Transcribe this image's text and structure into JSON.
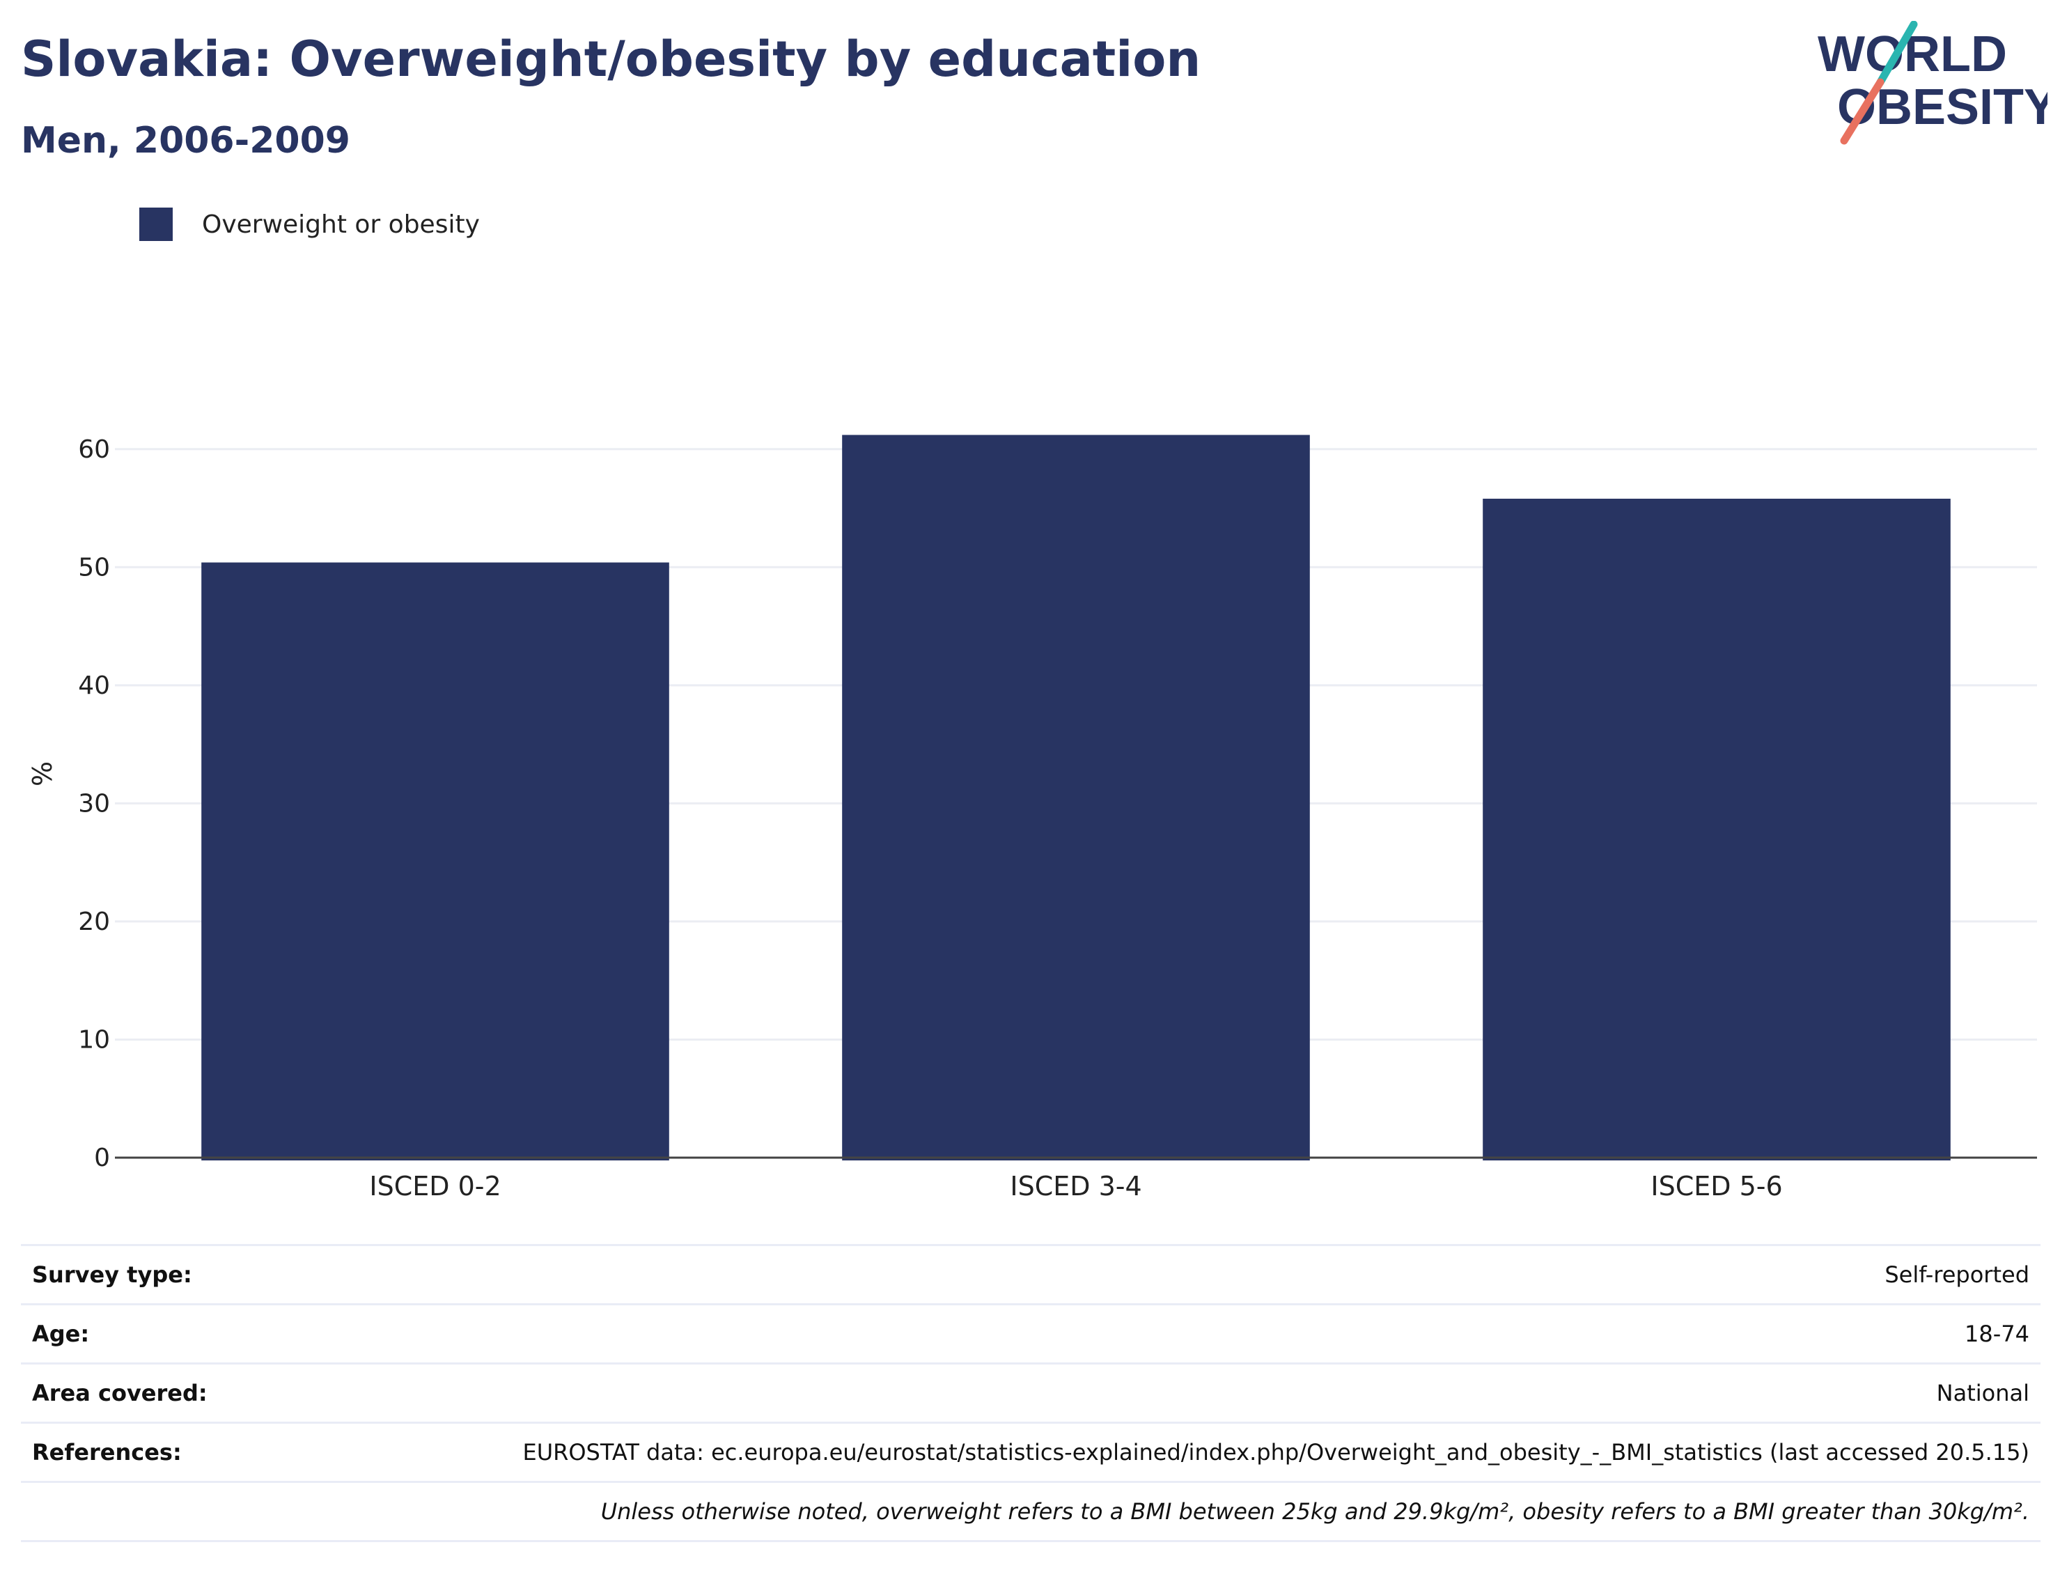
{
  "header": {
    "title": "Slovakia: Overweight/obesity by education",
    "subtitle": "Men, 2006-2009"
  },
  "logo": {
    "line1": "WORLD",
    "line2": "OBESITY",
    "colors": {
      "text": "#283462",
      "slash_top": "#2ab5b0",
      "slash_bottom": "#e8715f"
    }
  },
  "legend": {
    "label": "Overweight or obesity",
    "color": "#283462"
  },
  "chart_data": {
    "type": "bar",
    "categories": [
      "ISCED 0-2",
      "ISCED 3-4",
      "ISCED 5-6"
    ],
    "series": [
      {
        "name": "Overweight or obesity",
        "values": [
          50.4,
          61.2,
          55.8
        ],
        "color": "#283462"
      }
    ],
    "ylabel": "%",
    "xlabel": "",
    "ylim": [
      0,
      65
    ],
    "yticks": [
      0,
      10,
      20,
      30,
      40,
      50,
      60
    ],
    "grid": true
  },
  "info": {
    "rows": [
      {
        "label": "Survey type:",
        "value": "Self-reported"
      },
      {
        "label": "Age:",
        "value": "18-74"
      },
      {
        "label": "Area covered:",
        "value": "National"
      },
      {
        "label": "References:",
        "value": "EUROSTAT data: ec.europa.eu/eurostat/statistics-explained/index.php/Overweight_and_obesity_-_BMI_statistics (last accessed 20.5.15)"
      }
    ],
    "note": "Unless otherwise noted, overweight refers to a BMI between 25kg and 29.9kg/m², obesity refers to a BMI greater than 30kg/m²."
  }
}
